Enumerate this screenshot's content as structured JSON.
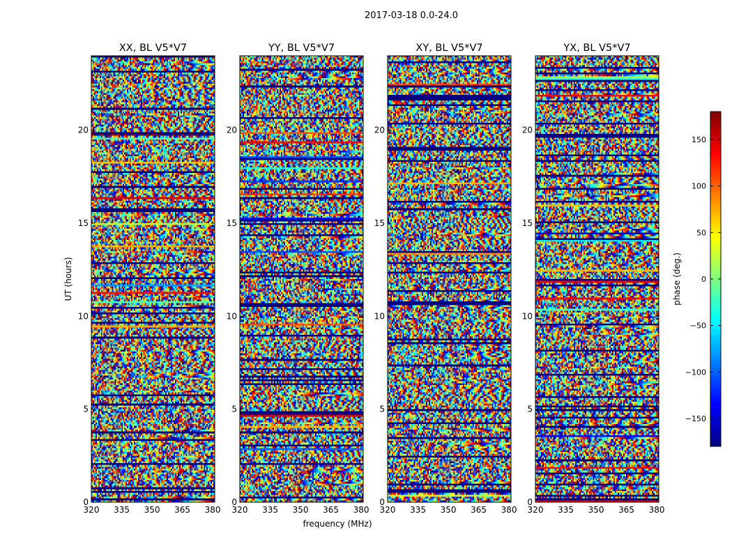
{
  "figure": {
    "suptitle": "2017-03-18 0.0-24.0",
    "xlabel": "frequency (MHz)",
    "ylabel": "UT (hours)"
  },
  "chart_data": {
    "type": "heatmap",
    "title": "2017-03-18 0.0-24.0",
    "xlabel": "frequency (MHz)",
    "ylabel": "UT (hours)",
    "xlim": [
      320,
      381
    ],
    "ylim": [
      0,
      24
    ],
    "xticks": [
      "320",
      "335",
      "350",
      "365",
      "380"
    ],
    "yticks": [
      "0",
      "5",
      "10",
      "15",
      "20"
    ],
    "panels": [
      {
        "title": "XX, BL V5*V7",
        "show_ylabel": true
      },
      {
        "title": "YY, BL V5*V7",
        "show_ylabel": false
      },
      {
        "title": "XY, BL V5*V7",
        "show_ylabel": false
      },
      {
        "title": "YX, BL V5*V7",
        "show_ylabel": false
      }
    ],
    "colorbar": {
      "label": "phase (deg.)",
      "min": -180,
      "max": 180,
      "ticks": [
        "150",
        "100",
        "50",
        "0",
        "−50",
        "−100",
        "−150"
      ],
      "tick_values": [
        150,
        100,
        50,
        0,
        -50,
        -100,
        -150
      ],
      "colormap": "jet"
    },
    "values_note_hidden": null
  }
}
